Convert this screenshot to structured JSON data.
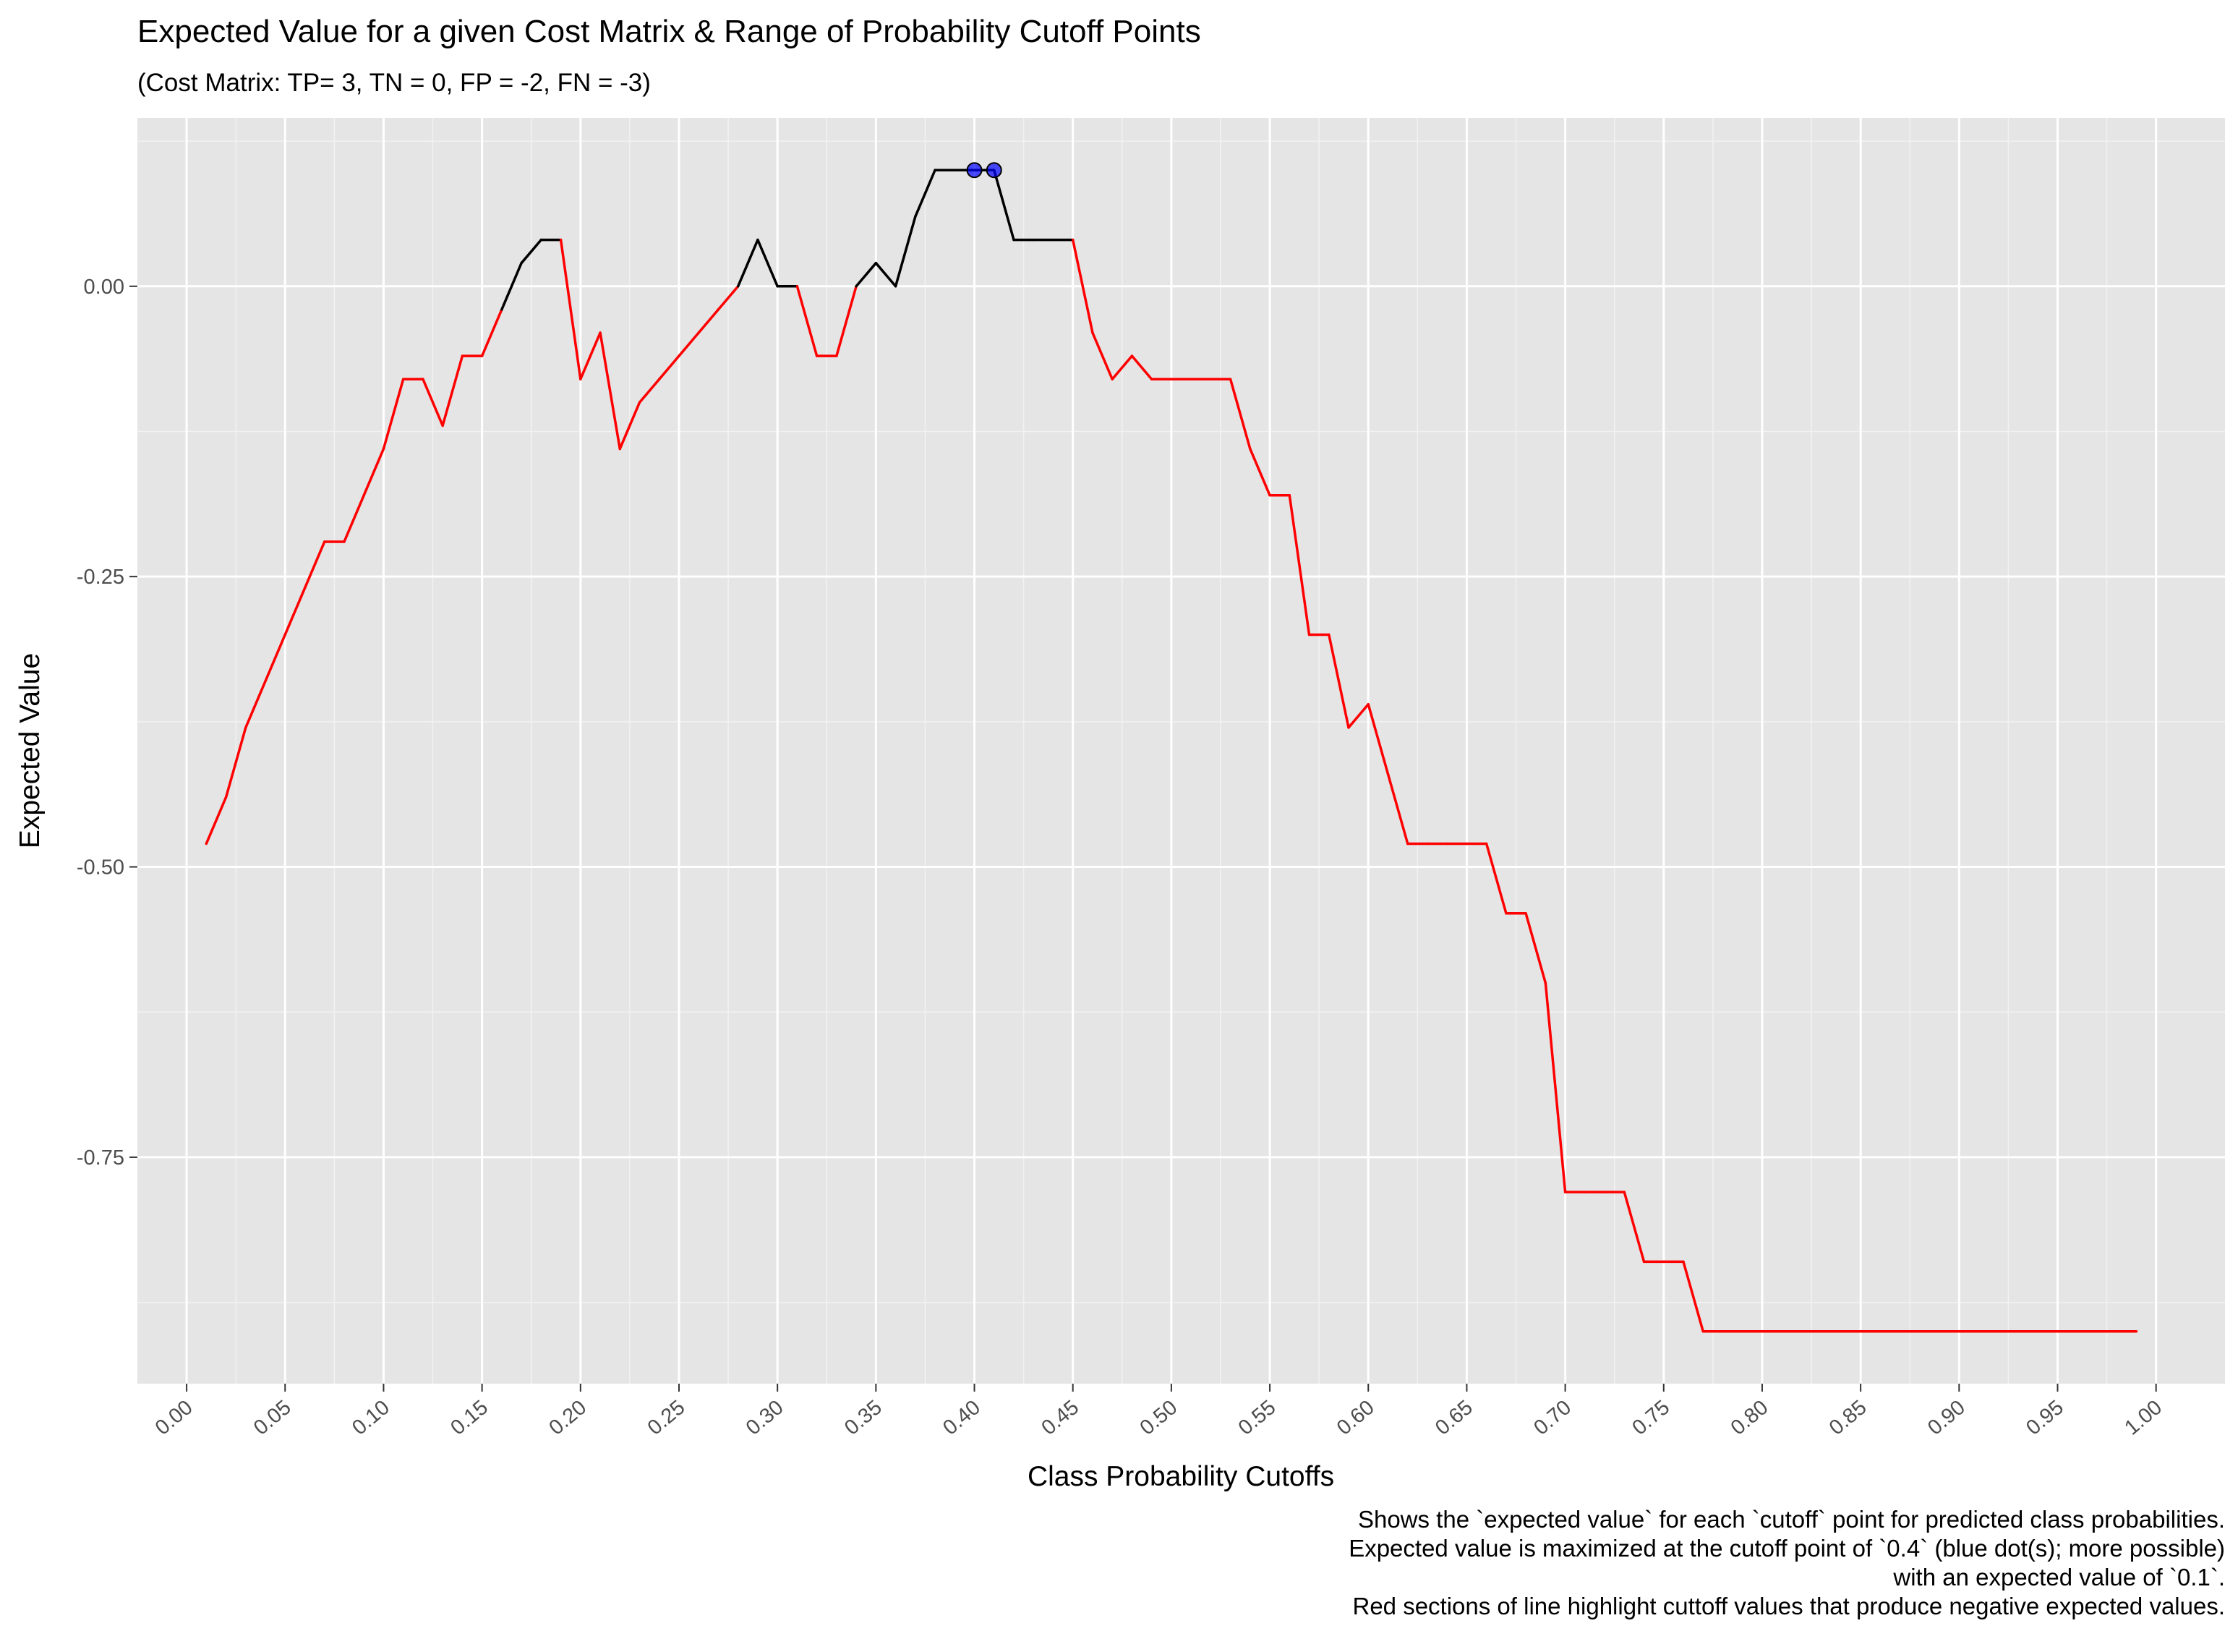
{
  "chart_data": {
    "type": "line",
    "title": "Expected Value for a given Cost Matrix & Range of Probability Cutoff Points",
    "subtitle": "(Cost Matrix: TP= 3, TN = 0, FP = -2, FN = -3)",
    "xlabel": "Class Probability Cutoffs",
    "ylabel": "Expected Value",
    "xlim": [
      -0.025,
      1.035
    ],
    "ylim": [
      -0.945,
      0.145
    ],
    "x_ticks": [
      "0.00",
      "0.05",
      "0.10",
      "0.15",
      "0.20",
      "0.25",
      "0.30",
      "0.35",
      "0.40",
      "0.45",
      "0.50",
      "0.55",
      "0.60",
      "0.65",
      "0.70",
      "0.75",
      "0.80",
      "0.85",
      "0.90",
      "0.95",
      "1.00"
    ],
    "y_ticks": [
      "0.00",
      "-0.25",
      "-0.50",
      "-0.75"
    ],
    "grid": true,
    "background": "#e5e5e5",
    "colors": {
      "positive": "#000000",
      "negative": "#ff0000",
      "highlight": "#0000ff"
    },
    "x": [
      0.01,
      0.02,
      0.03,
      0.04,
      0.05,
      0.06,
      0.07,
      0.08,
      0.09,
      0.1,
      0.11,
      0.12,
      0.13,
      0.14,
      0.15,
      0.16,
      0.17,
      0.18,
      0.19,
      0.2,
      0.21,
      0.22,
      0.23,
      0.24,
      0.25,
      0.26,
      0.27,
      0.28,
      0.29,
      0.3,
      0.31,
      0.32,
      0.33,
      0.34,
      0.35,
      0.36,
      0.37,
      0.38,
      0.39,
      0.4,
      0.41,
      0.42,
      0.43,
      0.44,
      0.45,
      0.46,
      0.47,
      0.48,
      0.49,
      0.5,
      0.51,
      0.52,
      0.53,
      0.54,
      0.55,
      0.56,
      0.57,
      0.58,
      0.59,
      0.6,
      0.61,
      0.62,
      0.63,
      0.64,
      0.65,
      0.66,
      0.67,
      0.68,
      0.69,
      0.7,
      0.71,
      0.72,
      0.73,
      0.74,
      0.75,
      0.76,
      0.77,
      0.78,
      0.79,
      0.8,
      0.81,
      0.82,
      0.83,
      0.84,
      0.85,
      0.86,
      0.87,
      0.88,
      0.89,
      0.9,
      0.91,
      0.92,
      0.93,
      0.94,
      0.95,
      0.96,
      0.97,
      0.98,
      0.99
    ],
    "y": [
      -0.48,
      -0.44,
      -0.38,
      -0.34,
      -0.3,
      -0.26,
      -0.22,
      -0.22,
      -0.18,
      -0.14,
      -0.08,
      -0.08,
      -0.12,
      -0.06,
      -0.06,
      -0.02,
      0.02,
      0.04,
      0.04,
      -0.08,
      -0.04,
      -0.14,
      -0.1,
      -0.08,
      -0.06,
      -0.04,
      -0.02,
      0.0,
      0.04,
      0.0,
      0.0,
      -0.06,
      -0.06,
      0.0,
      0.02,
      0.0,
      0.06,
      0.1,
      0.1,
      0.1,
      0.1,
      0.04,
      0.04,
      0.04,
      0.04,
      -0.04,
      -0.08,
      -0.06,
      -0.08,
      -0.08,
      -0.08,
      -0.08,
      -0.08,
      -0.14,
      -0.18,
      -0.18,
      -0.3,
      -0.3,
      -0.38,
      -0.36,
      -0.42,
      -0.48,
      -0.48,
      -0.48,
      -0.48,
      -0.48,
      -0.54,
      -0.54,
      -0.6,
      -0.78,
      -0.78,
      -0.78,
      -0.78,
      -0.84,
      -0.84,
      -0.84,
      -0.9,
      -0.9,
      -0.9,
      -0.9,
      -0.9,
      -0.9,
      -0.9,
      -0.9,
      -0.9,
      -0.9,
      -0.9,
      -0.9,
      -0.9,
      -0.9,
      -0.9,
      -0.9,
      -0.9,
      -0.9,
      -0.9,
      -0.9,
      -0.9,
      -0.9,
      -0.9
    ],
    "highlight_points": [
      {
        "x": 0.4,
        "y": 0.1
      },
      {
        "x": 0.41,
        "y": 0.1
      }
    ],
    "caption": [
      "Shows the `expected value` for each `cutoff` point for predicted class probabilities.",
      "Expected value is maximized at the cutoff point of `0.4` (blue dot(s); more possible)",
      "with an expected value of `0.1`.",
      "Red sections of line highlight cuttoff values that produce negative expected values."
    ]
  }
}
